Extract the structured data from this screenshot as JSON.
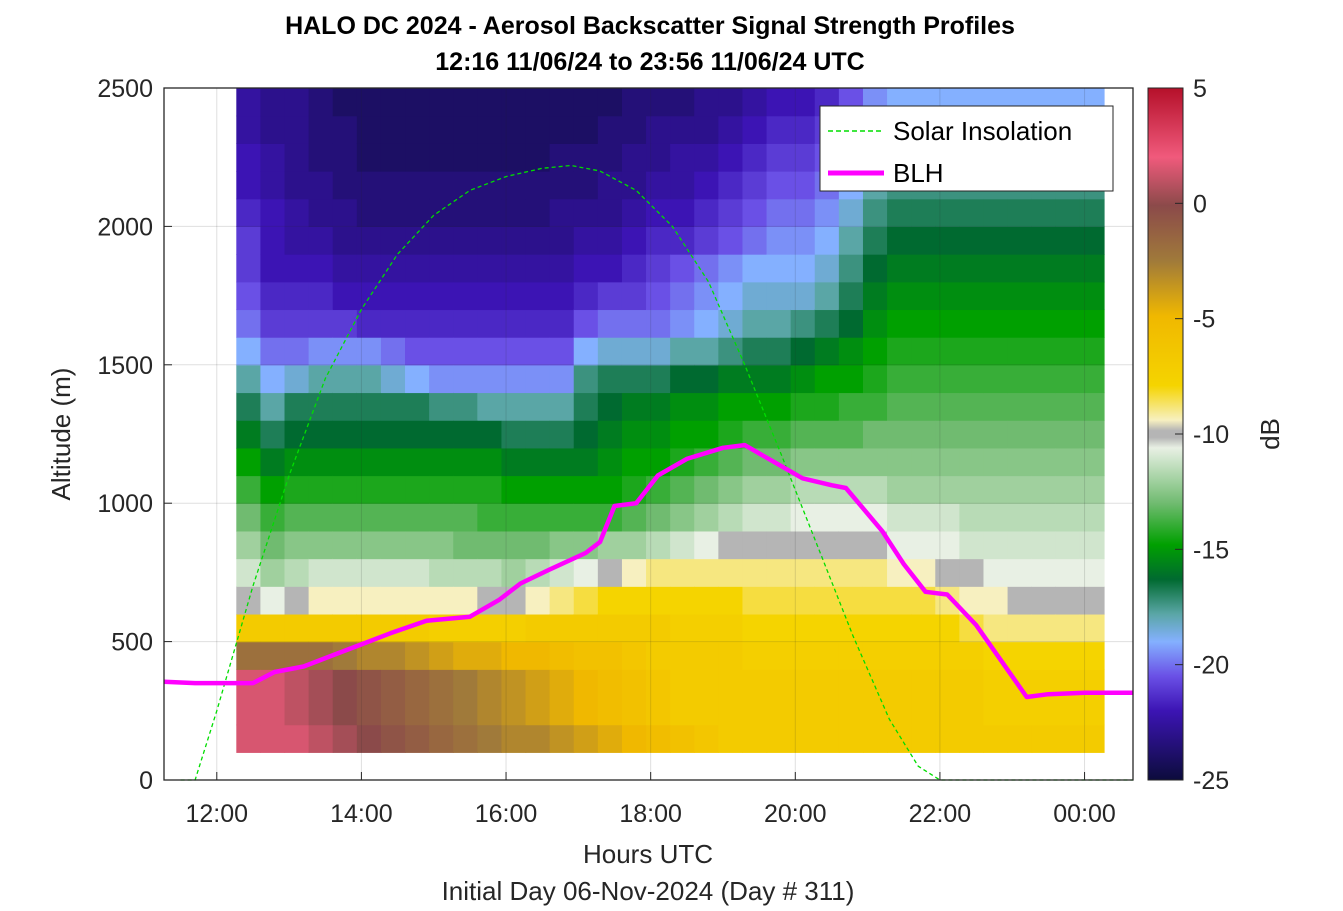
{
  "chart_data": {
    "type": "heatmap",
    "title": "HALO DC 2024 - Aerosol Backscatter Signal Strength Profiles",
    "subtitle": "12:16 11/06/24 to 23:56 11/06/24  UTC",
    "xlabel": "Hours UTC",
    "xlabel2": "Initial Day 06-Nov-2024 (Day # 311)",
    "ylabel": "Altitude (m)",
    "colorbar_label": "dB",
    "xlim": [
      11.27,
      24.67
    ],
    "ylim": [
      0,
      2500
    ],
    "clim": [
      -25,
      5
    ],
    "x_ticks": [
      12,
      14,
      16,
      18,
      20,
      22,
      24
    ],
    "x_tick_labels": [
      "12:00",
      "14:00",
      "16:00",
      "18:00",
      "20:00",
      "22:00",
      "00:00"
    ],
    "y_ticks": [
      0,
      500,
      1000,
      1500,
      2000,
      2500
    ],
    "y_tick_labels": [
      "0",
      "500",
      "1000",
      "1500",
      "2000",
      "2500"
    ],
    "colorbar_ticks": [
      5,
      0,
      -5,
      -10,
      -15,
      -20,
      -25
    ],
    "colorbar_tick_labels": [
      "5",
      "0",
      "-5",
      "-10",
      "-15",
      "-20",
      "-25"
    ],
    "grid": true,
    "legend_position": "top-right",
    "heatmap": {
      "x_start": 12.27,
      "x_step": 0.3333,
      "columns": 36,
      "y_start": 100,
      "y_step": 50,
      "profile_altitudes": [
        200,
        400,
        500,
        600,
        700,
        800,
        900,
        1000,
        1100,
        1200,
        1300,
        1400,
        1500,
        1600,
        1700,
        1800,
        1900,
        2000,
        2100,
        2200,
        2300,
        2400,
        2500
      ],
      "profiles_by_column": [
        [
          1.5,
          1.5,
          -2,
          -7,
          -10,
          -11,
          -12,
          -13,
          -14,
          -15,
          -16,
          -17,
          -18,
          -19,
          -20,
          -20.5,
          -21,
          -21,
          -21.5,
          -22,
          -22,
          -22.5,
          -22.5
        ],
        [
          1.5,
          1.5,
          -2,
          -7,
          -10.5,
          -12,
          -13,
          -14,
          -15,
          -16,
          -17,
          -18,
          -19,
          -20,
          -21,
          -21.5,
          -22,
          -22,
          -22,
          -22.5,
          -22.5,
          -23,
          -23
        ],
        [
          1.5,
          1,
          -2,
          -7,
          -10,
          -11.5,
          -12.5,
          -13.5,
          -14.5,
          -15.5,
          -16.5,
          -17,
          -18.5,
          -20,
          -21,
          -21.5,
          -22,
          -22.5,
          -22.5,
          -23,
          -23,
          -23,
          -23
        ],
        [
          1,
          0.5,
          -2,
          -7,
          -9.5,
          -11,
          -12.5,
          -13.5,
          -14.5,
          -15.5,
          -16.5,
          -17,
          -18,
          -19.5,
          -21,
          -21.5,
          -22,
          -22.5,
          -23,
          -23,
          -23.5,
          -23.5,
          -23.5
        ],
        [
          0.5,
          0,
          -2.5,
          -7,
          -9.5,
          -11,
          -12.5,
          -13.5,
          -14.5,
          -15.5,
          -16.5,
          -17,
          -18,
          -19.5,
          -21,
          -22,
          -22.5,
          -23,
          -23,
          -23.5,
          -23.5,
          -23.5,
          -24
        ],
        [
          0,
          -0.5,
          -3,
          -7,
          -9.5,
          -11,
          -12.5,
          -13.5,
          -14.5,
          -15.5,
          -16.5,
          -17,
          -18,
          -19.5,
          -21.5,
          -22,
          -22.5,
          -23,
          -23.5,
          -23.5,
          -24,
          -24,
          -24
        ],
        [
          -0.5,
          -1,
          -3,
          -7,
          -9.5,
          -11,
          -12.5,
          -13.5,
          -14.5,
          -15.5,
          -16.5,
          -17,
          -18.5,
          -20,
          -21.5,
          -22,
          -22.5,
          -23,
          -23.5,
          -23.5,
          -24,
          -24,
          -24
        ],
        [
          -1,
          -1.5,
          -3.5,
          -7,
          -9.5,
          -11,
          -12.5,
          -13.5,
          -14.5,
          -15.5,
          -16.5,
          -17,
          -19,
          -20.5,
          -21.5,
          -22,
          -22.5,
          -23,
          -23.5,
          -23.5,
          -24,
          -24,
          -24
        ],
        [
          -1.5,
          -2,
          -4,
          -7.5,
          -9.5,
          -11.5,
          -12.5,
          -13.5,
          -14.5,
          -15.5,
          -16.5,
          -17.5,
          -19.5,
          -20.5,
          -21.5,
          -22,
          -22.5,
          -23,
          -23.5,
          -23.5,
          -24,
          -24,
          -24
        ],
        [
          -2,
          -2.5,
          -4.5,
          -7.5,
          -9.5,
          -11.5,
          -13,
          -13.5,
          -14.5,
          -15.5,
          -16.5,
          -17.5,
          -19.5,
          -20.5,
          -21.5,
          -22,
          -22.5,
          -23,
          -23.5,
          -23.5,
          -24,
          -24,
          -24
        ],
        [
          -2.5,
          -3,
          -4.5,
          -7.5,
          -10,
          -11.5,
          -13,
          -14,
          -14.5,
          -15.5,
          -16.5,
          -18,
          -19.5,
          -20.5,
          -21.5,
          -22,
          -22.5,
          -23,
          -23.5,
          -23.5,
          -24,
          -24,
          -24
        ],
        [
          -3,
          -3.5,
          -5,
          -7.5,
          -10,
          -12,
          -13,
          -14,
          -15,
          -16,
          -17,
          -18,
          -19.5,
          -20.5,
          -21.5,
          -22,
          -22.5,
          -23,
          -23.5,
          -23.5,
          -24,
          -24,
          -24
        ],
        [
          -3,
          -4,
          -5,
          -7,
          -9.5,
          -11.5,
          -13,
          -14,
          -15,
          -16,
          -17,
          -18,
          -19.5,
          -20.5,
          -21.5,
          -22,
          -22.5,
          -23,
          -23.5,
          -23.5,
          -24,
          -24,
          -24
        ],
        [
          -3.5,
          -4.5,
          -5.5,
          -7,
          -9,
          -11,
          -12.5,
          -14,
          -15,
          -16,
          -17,
          -18,
          -19.5,
          -20.5,
          -21.5,
          -22,
          -22.5,
          -23,
          -23,
          -23.5,
          -23.5,
          -24,
          -24
        ],
        [
          -4,
          -5,
          -6,
          -7,
          -8.5,
          -10.5,
          -12.5,
          -14,
          -15,
          -16,
          -16.5,
          -17,
          -17.5,
          -19,
          -20.5,
          -21.5,
          -22,
          -22.5,
          -23,
          -23.5,
          -23.5,
          -24,
          -24
        ],
        [
          -4.5,
          -5.5,
          -6,
          -7,
          -8,
          -10,
          -12,
          -14,
          -15,
          -15.5,
          -16,
          -16.5,
          -17,
          -18.5,
          -20,
          -21,
          -22,
          -22.5,
          -23,
          -23,
          -23.5,
          -23.5,
          -24
        ],
        [
          -5,
          -6,
          -6.5,
          -7,
          -8,
          -9.5,
          -12,
          -13.5,
          -14.5,
          -15,
          -15.5,
          -16,
          -17,
          -18.5,
          -20,
          -21,
          -21.5,
          -22,
          -22.5,
          -23,
          -23,
          -23.5,
          -23.5
        ],
        [
          -5.5,
          -6.5,
          -7,
          -7,
          -8,
          -9,
          -11.5,
          -13,
          -14,
          -15,
          -15.5,
          -16,
          -17,
          -18.5,
          -20,
          -20.5,
          -21,
          -21.5,
          -22,
          -22.5,
          -23,
          -23,
          -23.5
        ],
        [
          -6,
          -7,
          -7,
          -7.5,
          -8,
          -9,
          -11,
          -12.5,
          -13.5,
          -14.5,
          -15,
          -15.5,
          -16.5,
          -18,
          -19.5,
          -20,
          -20.5,
          -21.5,
          -22,
          -22.5,
          -22.5,
          -23,
          -23.5
        ],
        [
          -6.5,
          -7,
          -7,
          -7.5,
          -8,
          -9,
          -10.5,
          -12,
          -13,
          -14,
          -15,
          -15.5,
          -16.5,
          -18,
          -19,
          -19.5,
          -20,
          -21,
          -21.5,
          -22,
          -22.5,
          -23,
          -23
        ],
        [
          -7,
          -7,
          -7,
          -7.5,
          -8,
          -9,
          -10,
          -11.5,
          -12.5,
          -13.5,
          -14.5,
          -15,
          -16,
          -17.5,
          -18.5,
          -19,
          -19.5,
          -20.5,
          -21,
          -21.5,
          -22,
          -22.5,
          -23
        ],
        [
          -7,
          -7,
          -7.5,
          -8,
          -8.5,
          -9,
          -10,
          -11,
          -12,
          -13,
          -14,
          -15,
          -16,
          -17,
          -18,
          -18.5,
          -19,
          -20,
          -20.5,
          -21,
          -21.5,
          -22,
          -22.5
        ],
        [
          -7,
          -7,
          -7.5,
          -8,
          -8.5,
          -9,
          -10,
          -11,
          -12,
          -13,
          -14,
          -15,
          -16,
          -17,
          -18,
          -18.5,
          -19,
          -19.5,
          -20,
          -20.5,
          -21,
          -21.5,
          -22
        ],
        [
          -7,
          -7,
          -7.5,
          -8,
          -8.5,
          -9,
          -10,
          -10.5,
          -11.5,
          -12.5,
          -13.5,
          -14.5,
          -15.5,
          -16.5,
          -17.5,
          -18.5,
          -19,
          -19.5,
          -20,
          -20.5,
          -21,
          -21.5,
          -22
        ],
        [
          -7,
          -7,
          -7.5,
          -8,
          -8.5,
          -9,
          -10,
          -10.5,
          -11.5,
          -12.5,
          -13.5,
          -14.5,
          -15,
          -16,
          -17,
          -18,
          -18.5,
          -19,
          -19.5,
          -20,
          -20.5,
          -21,
          -21.5
        ],
        [
          -7,
          -7,
          -7.5,
          -8,
          -8.5,
          -9,
          -10,
          -10.5,
          -11.5,
          -12.5,
          -13.5,
          -14,
          -15,
          -15.5,
          -16.5,
          -17,
          -17.5,
          -18,
          -18.5,
          -19,
          -19.5,
          -20,
          -20.5
        ],
        [
          -7,
          -7,
          -7.5,
          -8,
          -8.5,
          -9,
          -10,
          -10.5,
          -11.5,
          -12.5,
          -13,
          -14,
          -14.5,
          -15,
          -15.5,
          -16,
          -16.5,
          -17,
          -17.5,
          -18,
          -18.5,
          -19,
          -19.5
        ],
        [
          -7,
          -7,
          -7.5,
          -8,
          -8.5,
          -9.5,
          -10.5,
          -11,
          -12,
          -12.5,
          -13,
          -13.5,
          -14,
          -14.5,
          -15,
          -15.5,
          -16,
          -16.5,
          -17,
          -17.5,
          -18,
          -18.5,
          -19
        ],
        [
          -7,
          -7,
          -7.5,
          -8,
          -8.5,
          -9.5,
          -10.5,
          -11,
          -12,
          -12.5,
          -13,
          -13.5,
          -14,
          -14.5,
          -15,
          -15.5,
          -16,
          -16.5,
          -17,
          -17.5,
          -18,
          -18.5,
          -19
        ],
        [
          -7,
          -7,
          -7.5,
          -8,
          -9,
          -10,
          -10.5,
          -11,
          -12,
          -12.5,
          -13,
          -13.5,
          -14,
          -14.5,
          -15,
          -15.5,
          -16,
          -16.5,
          -17,
          -17.5,
          -18,
          -18.5,
          -19
        ],
        [
          -7,
          -7,
          -7.5,
          -8.5,
          -9.5,
          -10,
          -11,
          -11.5,
          -12,
          -12.5,
          -13,
          -13.5,
          -14,
          -14.5,
          -15,
          -15.5,
          -16,
          -16.5,
          -17,
          -17.5,
          -18,
          -18.5,
          -19
        ],
        [
          -7,
          -7.5,
          -8,
          -9,
          -9.5,
          -10.5,
          -11,
          -11.5,
          -12,
          -12.5,
          -13,
          -13.5,
          -14,
          -14.5,
          -15,
          -15.5,
          -16,
          -16.5,
          -17,
          -17.5,
          -18,
          -18.5,
          -19
        ],
        [
          -7,
          -7.5,
          -8,
          -9,
          -10,
          -10.5,
          -11,
          -11.5,
          -12,
          -12.5,
          -13,
          -13.5,
          -14,
          -14.5,
          -15,
          -15.5,
          -16,
          -16.5,
          -17,
          -17.5,
          -18,
          -18.5,
          -19
        ],
        [
          -7,
          -7.5,
          -8,
          -9,
          -10,
          -10.5,
          -11,
          -11.5,
          -12,
          -12.5,
          -13,
          -13.5,
          -14,
          -14.5,
          -15,
          -15.5,
          -16,
          -16.5,
          -17,
          -17.5,
          -18,
          -18.5,
          -19
        ],
        [
          -7,
          -7.5,
          -8,
          -9,
          -10,
          -10.5,
          -11,
          -11.5,
          -12,
          -12.5,
          -13,
          -13.5,
          -14,
          -14.5,
          -15,
          -15.5,
          -16,
          -16.5,
          -17,
          -17.5,
          -18,
          -18.5,
          -19
        ],
        [
          -7,
          -7.5,
          -8,
          -9,
          -10,
          -10.5,
          -11,
          -11.5,
          -12,
          -12.5,
          -13,
          -13.5,
          -14,
          -14.5,
          -15,
          -15.5,
          -16,
          -16.5,
          -17,
          -17.5,
          -18,
          -18.5,
          -19
        ]
      ]
    },
    "series": [
      {
        "name": "Solar Insolation",
        "color": "#00dd00",
        "style": "dashed",
        "x": [
          11.5,
          11.7,
          12.0,
          12.5,
          13.0,
          13.5,
          14.0,
          14.5,
          15.0,
          15.5,
          16.0,
          16.5,
          16.9,
          17.3,
          17.8,
          18.3,
          18.8,
          19.3,
          19.8,
          20.3,
          20.8,
          21.3,
          21.7,
          22.0,
          22.3,
          24.67
        ],
        "y": [
          0,
          0,
          250,
          700,
          1100,
          1450,
          1700,
          1900,
          2040,
          2130,
          2180,
          2210,
          2220,
          2200,
          2130,
          2000,
          1800,
          1500,
          1180,
          850,
          520,
          220,
          50,
          0,
          0,
          0
        ]
      },
      {
        "name": "BLH",
        "color": "#ff00ff",
        "style": "solid",
        "x": [
          11.27,
          11.7,
          12.0,
          12.5,
          12.8,
          13.2,
          13.6,
          14.0,
          14.4,
          14.9,
          15.5,
          15.9,
          16.2,
          16.6,
          17.1,
          17.3,
          17.5,
          17.8,
          18.1,
          18.5,
          19.0,
          19.3,
          19.7,
          20.1,
          20.5,
          20.7,
          21.2,
          21.5,
          21.8,
          22.1,
          22.5,
          23.2,
          23.5,
          24.0,
          24.67
        ],
        "y": [
          355,
          350,
          350,
          350,
          390,
          410,
          450,
          490,
          530,
          575,
          590,
          650,
          710,
          760,
          820,
          860,
          990,
          1000,
          1100,
          1160,
          1200,
          1210,
          1150,
          1090,
          1065,
          1055,
          900,
          780,
          680,
          670,
          560,
          300,
          310,
          315,
          315
        ]
      }
    ],
    "legend": [
      "Solar Insolation",
      "BLH"
    ]
  }
}
